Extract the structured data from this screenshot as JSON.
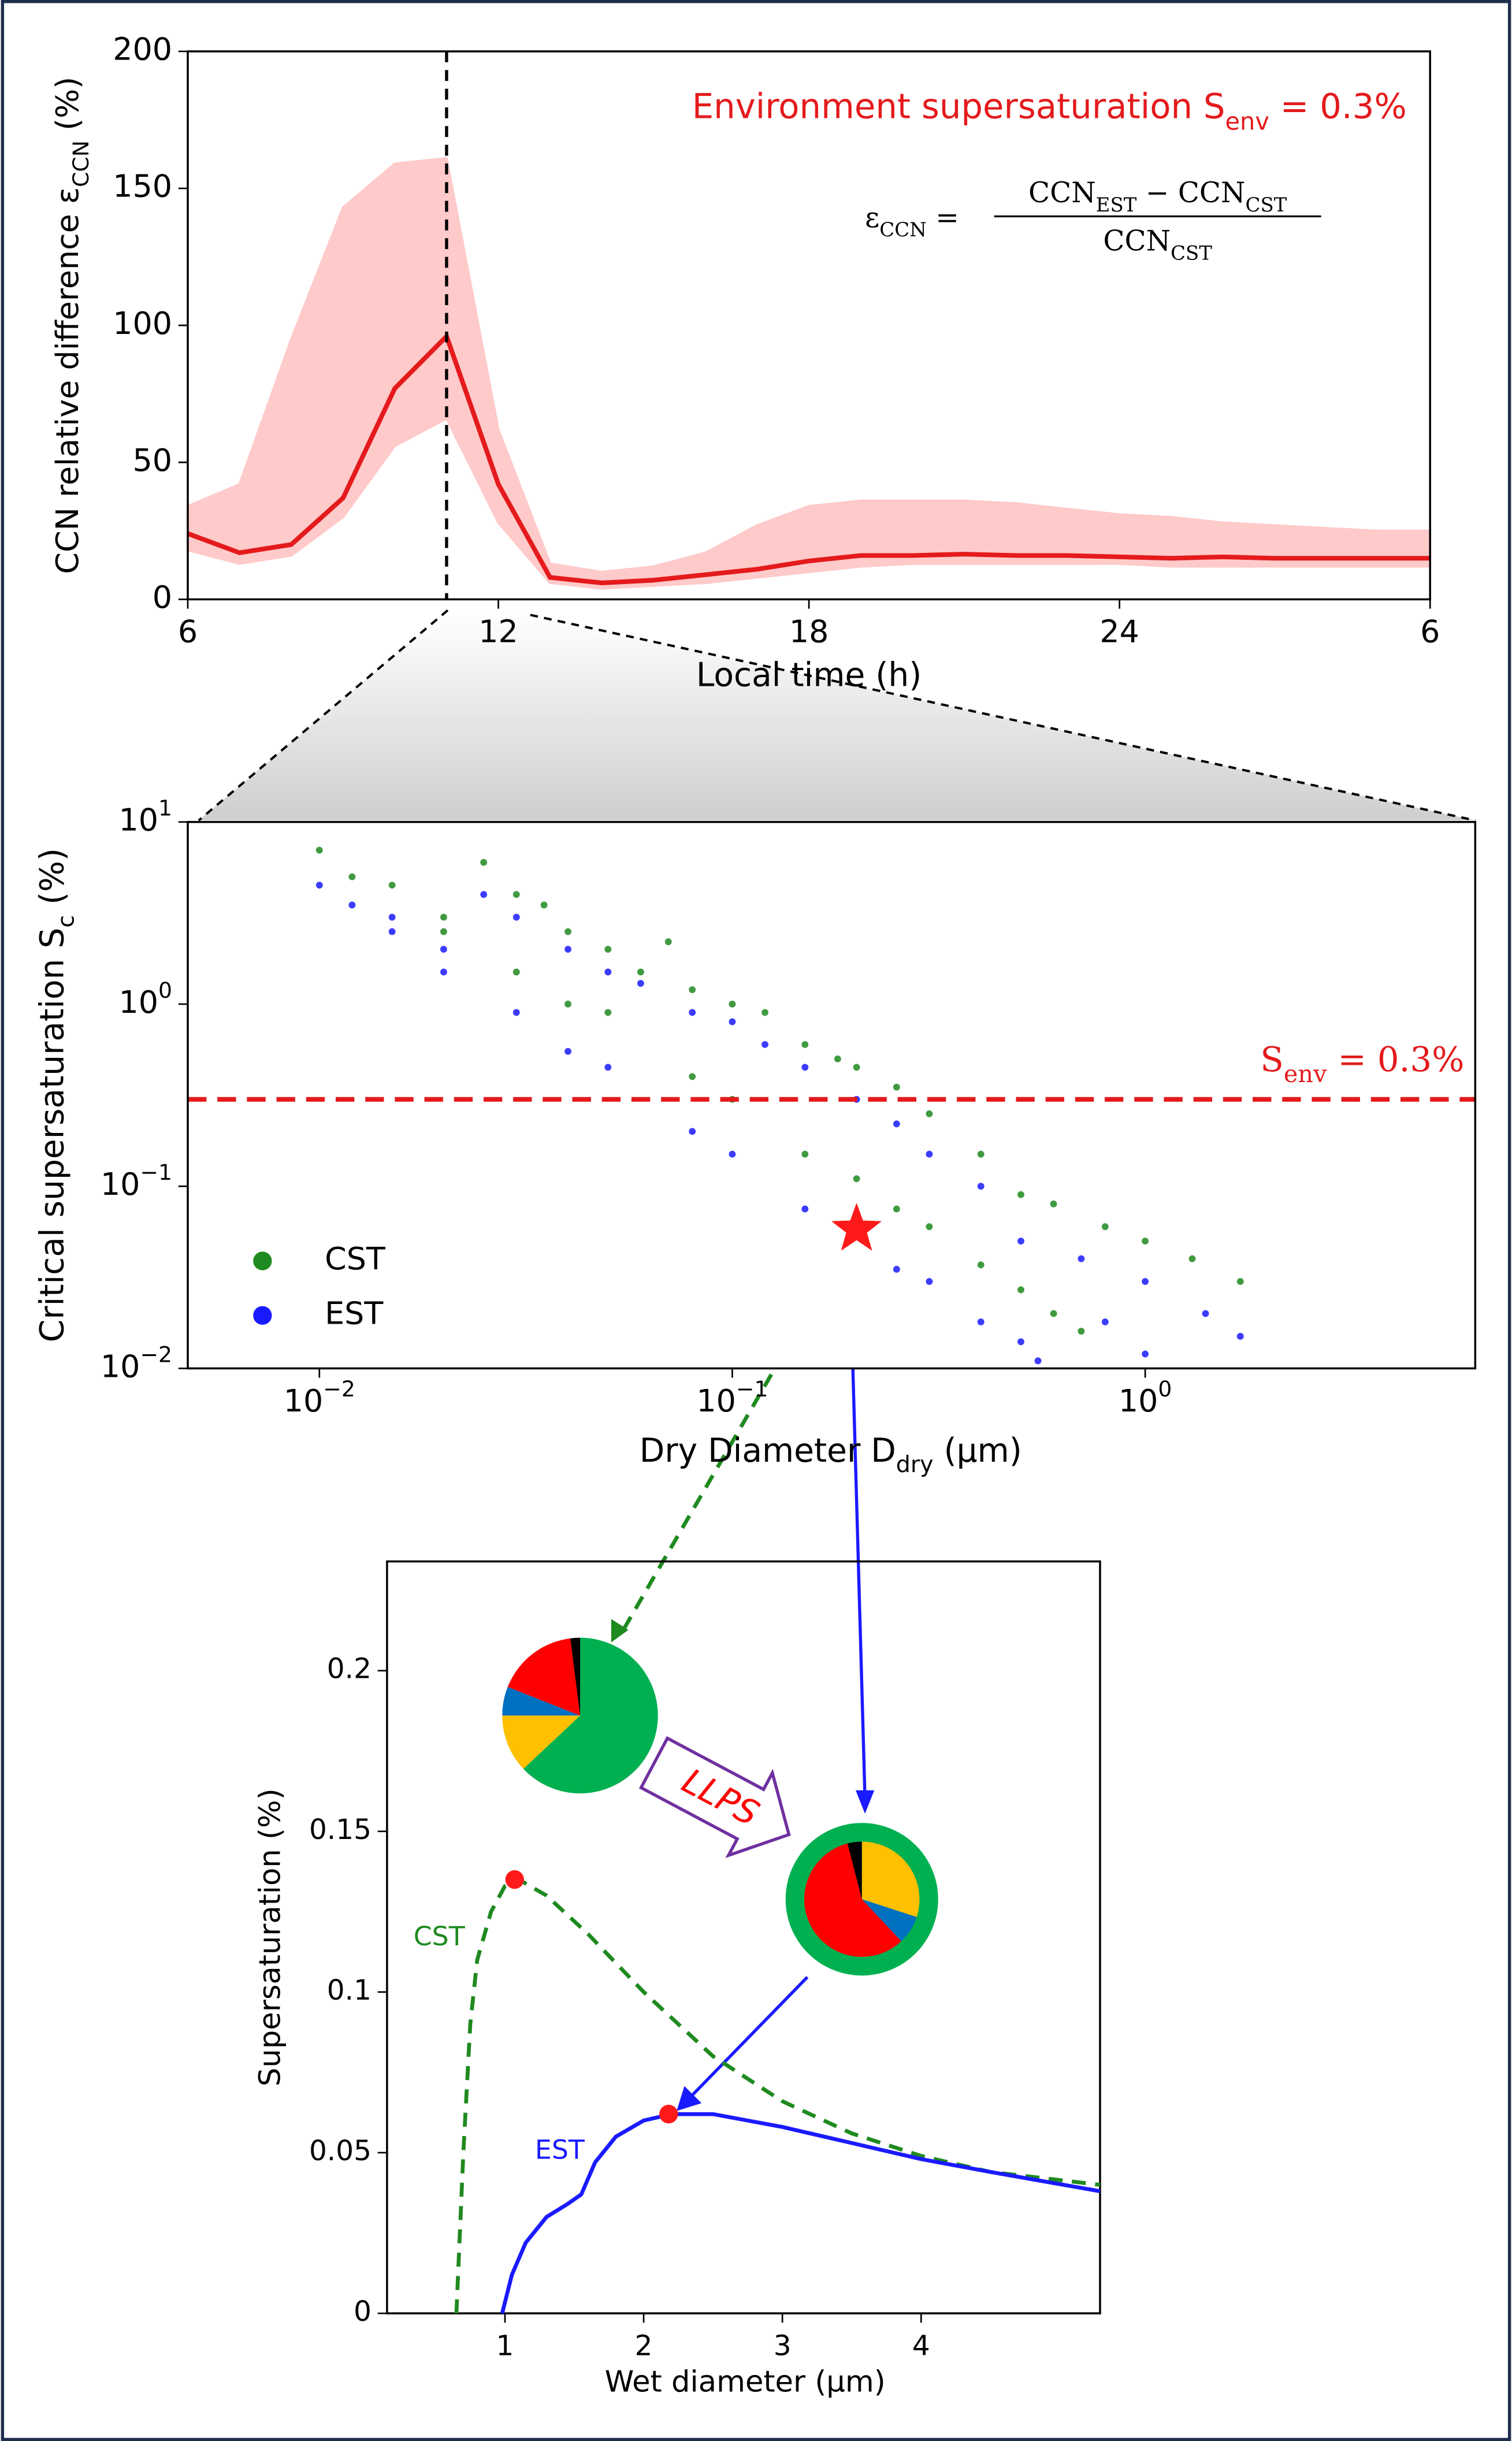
{
  "chart_data": [
    {
      "type": "line",
      "annotation": [
        "Environment supersaturation S",
        "env",
        " = 0.3%"
      ],
      "formula": {
        "lhs": [
          "ε",
          "CCN",
          " ="
        ],
        "numerator": [
          "CCN",
          "EST",
          " − CCN",
          "CST"
        ],
        "denominator": [
          "CCN",
          "CST"
        ]
      },
      "ylabel": [
        "CCN relative difference ε",
        "CCN",
        " (%)"
      ],
      "xlabel": "Local time (h)",
      "x": [
        6,
        7,
        8,
        9,
        10,
        11,
        12,
        13,
        14,
        15,
        16,
        17,
        18,
        19,
        20,
        21,
        22,
        23,
        24,
        25,
        26,
        27,
        28,
        29,
        30
      ],
      "values": [
        24,
        17,
        20,
        37,
        77,
        96,
        42,
        8,
        6,
        7,
        9,
        11,
        14,
        16,
        16,
        16.5,
        16,
        16,
        15.5,
        15,
        15.5,
        15,
        15,
        15,
        15
      ],
      "band_upper": [
        34,
        42,
        95,
        143,
        159,
        161,
        62,
        13,
        10,
        12,
        17,
        27,
        34,
        36,
        36,
        36,
        35,
        33,
        31,
        30,
        28,
        27,
        26,
        25,
        25
      ],
      "band_lower": [
        18,
        13,
        16,
        30,
        56,
        66,
        28,
        6,
        4,
        5,
        6,
        8,
        10,
        12,
        13,
        13,
        13,
        13,
        13,
        12,
        12,
        12,
        12,
        12,
        12
      ],
      "color": "#e41a1c",
      "band_color": "#ffcaca",
      "vline_x": 11,
      "xlim": [
        6,
        30
      ],
      "xticks": [
        6,
        12,
        18,
        24,
        {
          "value": 30,
          "label": "6"
        }
      ],
      "ylim": [
        0,
        200
      ],
      "yticks": [
        0,
        50,
        100,
        150,
        200
      ]
    },
    {
      "type": "scatter",
      "log_x": true,
      "log_y": true,
      "ylabel": [
        "Critical supersaturation S",
        "c",
        " (%)"
      ],
      "xlabel": [
        "Dry Diameter D",
        "dry",
        " (µm)"
      ],
      "xlim": [
        0.0048,
        6.3
      ],
      "ylim": [
        0.01,
        10
      ],
      "xticks": [
        {
          "value": 0.01,
          "label": "10",
          "exponent": "−2"
        },
        {
          "value": 0.1,
          "label": "10",
          "exponent": "−1"
        },
        {
          "value": 1,
          "label": "10",
          "exponent": "0"
        }
      ],
      "yticks": [
        {
          "value": 0.01,
          "label": "10",
          "exponent": "−2"
        },
        {
          "value": 0.1,
          "label": "10",
          "exponent": "−1"
        },
        {
          "value": 1,
          "label": "10",
          "exponent": "0"
        },
        {
          "value": 10,
          "label": "10",
          "exponent": "1"
        }
      ],
      "hline": {
        "y": 0.3,
        "color": "#e41a1c",
        "label": [
          "S",
          "env",
          " = 0.3%"
        ]
      },
      "highlight": {
        "x": 0.2,
        "y": 0.058,
        "color": "#ff1a1a"
      },
      "legend": "lower left",
      "series": [
        {
          "name": "CST",
          "color": "#1f8a1f",
          "x": [
            0.01,
            0.012,
            0.015,
            0.02,
            0.025,
            0.03,
            0.035,
            0.04,
            0.05,
            0.06,
            0.07,
            0.08,
            0.1,
            0.12,
            0.15,
            0.18,
            0.2,
            0.25,
            0.3,
            0.4,
            0.5,
            0.6,
            0.8,
            1.0,
            1.3,
            1.7,
            0.03,
            0.05,
            0.1,
            0.2,
            0.3,
            0.5,
            0.7,
            0.02,
            0.04,
            0.08,
            0.15,
            0.25,
            0.4,
            0.6
          ],
          "values": [
            7,
            5,
            4.5,
            3,
            6,
            4,
            3.5,
            2.5,
            2,
            1.5,
            2.2,
            1.2,
            1.0,
            0.9,
            0.6,
            0.5,
            0.45,
            0.35,
            0.25,
            0.15,
            0.09,
            0.08,
            0.06,
            0.05,
            0.04,
            0.03,
            1.5,
            0.9,
            0.3,
            0.11,
            0.06,
            0.027,
            0.016,
            2.5,
            1.0,
            0.4,
            0.15,
            0.075,
            0.037,
            0.02
          ]
        },
        {
          "name": "EST",
          "color": "#1a1aff",
          "x": [
            0.01,
            0.012,
            0.015,
            0.02,
            0.025,
            0.03,
            0.04,
            0.05,
            0.06,
            0.08,
            0.1,
            0.12,
            0.15,
            0.2,
            0.25,
            0.3,
            0.4,
            0.5,
            0.7,
            1.0,
            1.4,
            1.7,
            0.015,
            0.03,
            0.05,
            0.1,
            0.2,
            0.3,
            0.5,
            0.02,
            0.04,
            0.08,
            0.15,
            0.25,
            0.4,
            0.55,
            0.8,
            1.0
          ],
          "values": [
            4.5,
            3.5,
            3,
            2,
            4,
            3,
            2,
            1.5,
            1.3,
            0.9,
            0.8,
            0.6,
            0.45,
            0.3,
            0.22,
            0.15,
            0.1,
            0.05,
            0.04,
            0.03,
            0.02,
            0.015,
            2.5,
            0.9,
            0.45,
            0.15,
            0.055,
            0.03,
            0.014,
            1.5,
            0.55,
            0.2,
            0.075,
            0.035,
            0.018,
            0.011,
            0.018,
            0.012
          ]
        }
      ]
    },
    {
      "type": "line",
      "ylabel": "Supersaturation (%)",
      "xlabel": "Wet diameter (µm)",
      "xlim": [
        0.15,
        5.29
      ],
      "xticks": [
        1,
        2,
        3,
        4
      ],
      "ylim": [
        0,
        0.234
      ],
      "yticks": [
        0,
        0.05,
        0.1,
        0.15,
        0.2
      ],
      "series": [
        {
          "name": "CST",
          "color": "#1f8a1f",
          "linestyle": "dashed",
          "x": [
            0.65,
            0.7,
            0.75,
            0.8,
            0.9,
            1.0,
            1.1,
            1.3,
            1.6,
            2.0,
            2.5,
            3.0,
            3.5,
            4.0,
            4.5,
            5.29
          ],
          "values": [
            0,
            0.05,
            0.09,
            0.11,
            0.125,
            0.133,
            0.135,
            0.13,
            0.118,
            0.1,
            0.08,
            0.066,
            0.056,
            0.049,
            0.044,
            0.04
          ]
        },
        {
          "name": "EST",
          "color": "#1a1aff",
          "linestyle": "solid",
          "x": [
            0.98,
            1.05,
            1.15,
            1.3,
            1.45,
            1.55,
            1.65,
            1.8,
            2.0,
            2.2,
            2.5,
            3.0,
            3.5,
            4.0,
            4.5,
            5.29
          ],
          "values": [
            0,
            0.012,
            0.022,
            0.03,
            0.034,
            0.037,
            0.047,
            0.055,
            0.06,
            0.062,
            0.062,
            0.058,
            0.053,
            0.048,
            0.044,
            0.038
          ]
        }
      ],
      "critical_points": {
        "x": [
          1.07,
          2.18
        ],
        "values": [
          0.135,
          0.062
        ],
        "color": "#ff1a1a"
      },
      "pies": [
        {
          "values": [
            63,
            12,
            6,
            17,
            2
          ],
          "colors": [
            "#00b050",
            "#ffc000",
            "#0070c0",
            "#ff0000",
            "#000000"
          ]
        },
        {
          "values": [
            30,
            8,
            58,
            4
          ],
          "colors": [
            "#ffc000",
            "#0070c0",
            "#ff0000",
            "#000000"
          ],
          "ring_color": "#00b050"
        }
      ],
      "arrow_label": "LLPS"
    }
  ]
}
